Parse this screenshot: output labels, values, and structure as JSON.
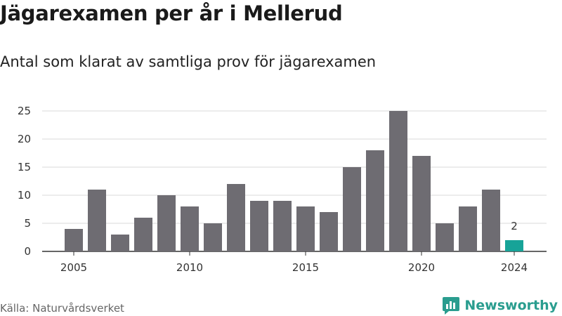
{
  "header": {
    "title": "Jägarexamen per år i Mellerud",
    "subtitle": "Antal som klarat av samtliga prov för jägarexamen"
  },
  "footer": {
    "source": "Källa: Naturvårdsverket",
    "brand": "Newsworthy"
  },
  "colors": {
    "bar": "#6e6c72",
    "highlight": "#17a398",
    "grid": "#d9d9d9",
    "brand": "#2a9d8f"
  },
  "chart_data": {
    "type": "bar",
    "x": [
      2005,
      2006,
      2007,
      2008,
      2009,
      2010,
      2011,
      2012,
      2013,
      2014,
      2015,
      2016,
      2017,
      2018,
      2019,
      2020,
      2021,
      2022,
      2023,
      2024
    ],
    "values": [
      4,
      11,
      3,
      6,
      10,
      8,
      5,
      12,
      9,
      9,
      8,
      7,
      15,
      18,
      25,
      17,
      5,
      8,
      11,
      2
    ],
    "highlight_index": 19,
    "data_labels": [
      {
        "index": 19,
        "text": "2"
      }
    ],
    "x_ticks": [
      "2005",
      "2010",
      "2015",
      "2020",
      "2024"
    ],
    "y_ticks": [
      "0",
      "5",
      "10",
      "15",
      "20",
      "25"
    ],
    "ylim": [
      0,
      25
    ],
    "grid": true,
    "legend": "none"
  }
}
